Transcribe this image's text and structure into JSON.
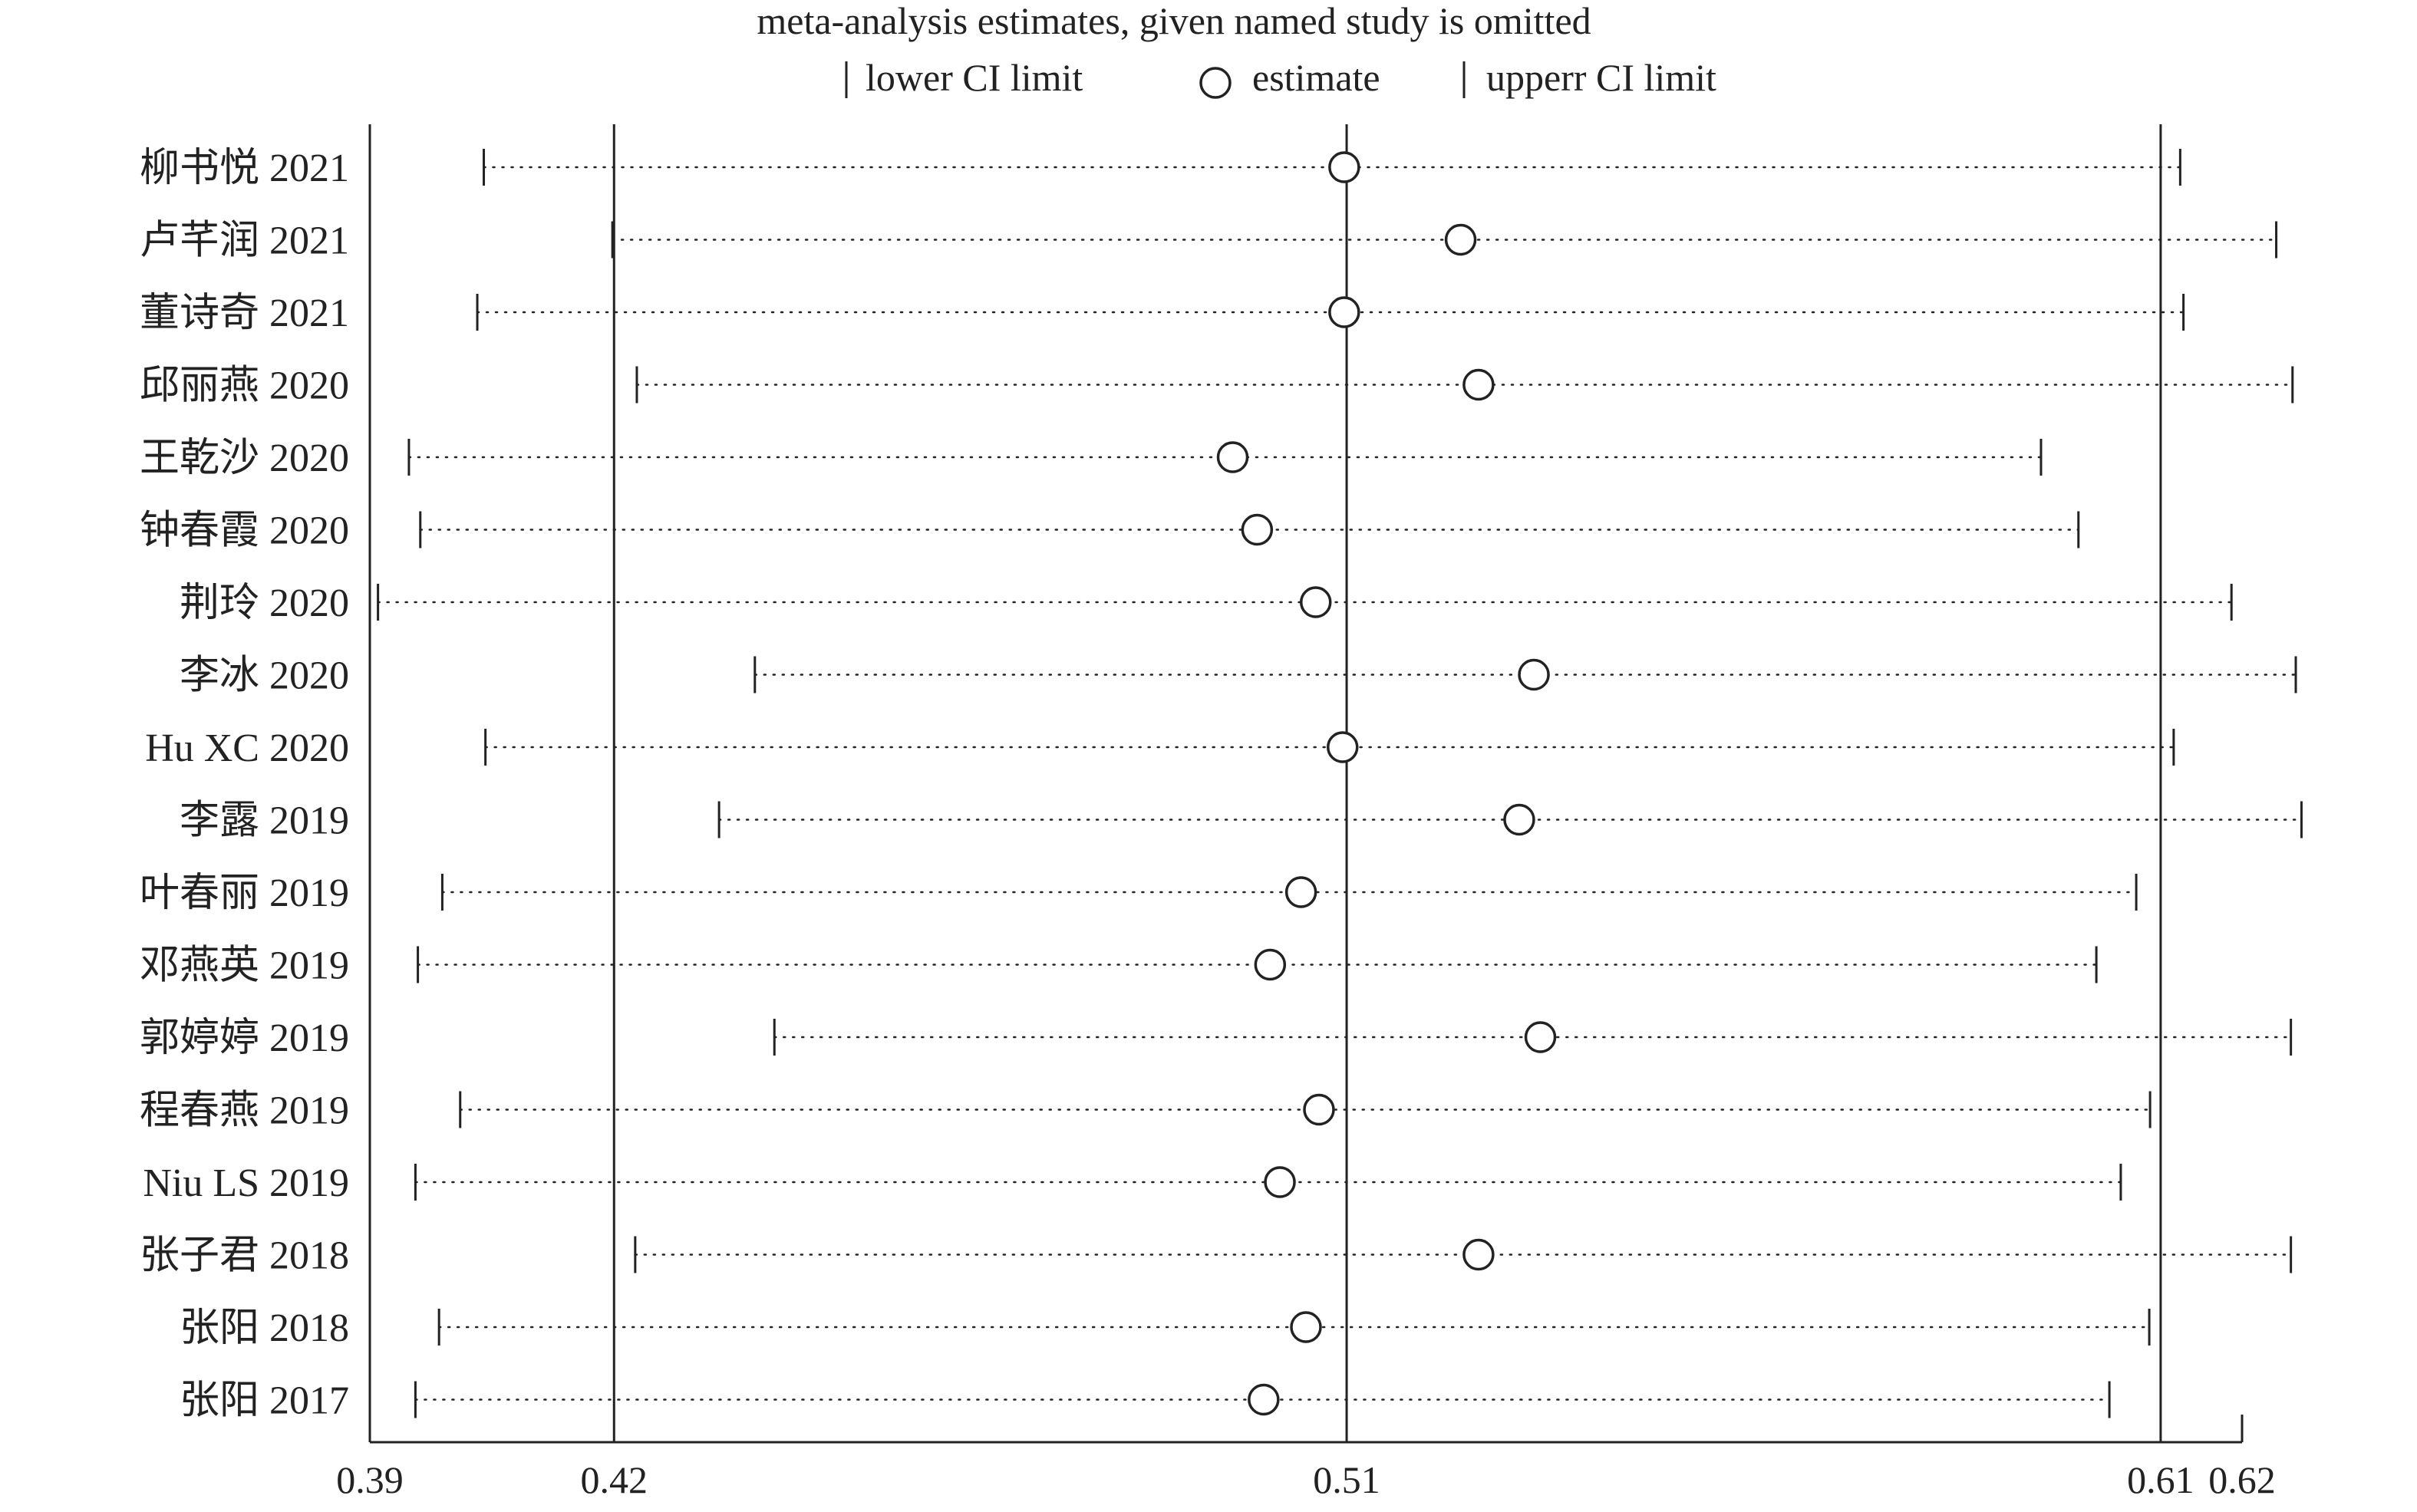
{
  "chart_data": {
    "type": "scatter",
    "title": "meta-analysis estimates, given named study is omitted",
    "legend": {
      "placement": "top",
      "entries": [
        {
          "symbol": "|",
          "label": "lower CI limit"
        },
        {
          "symbol": "○",
          "label": "estimate"
        },
        {
          "symbol": "|",
          "label": "upperr CI limit"
        }
      ]
    },
    "xlim": [
      0.39,
      0.62
    ],
    "xticks": [
      {
        "value": 0.39,
        "label": "0.39"
      },
      {
        "value": 0.42,
        "label": "0.42"
      },
      {
        "value": 0.51,
        "label": "0.51"
      },
      {
        "value": 0.61,
        "label": "0.61"
      },
      {
        "value": 0.62,
        "label": "0.62"
      }
    ],
    "reference_lines": [
      0.42,
      0.51,
      0.61
    ],
    "studies": [
      {
        "label": "柳书悦 2021",
        "lower": 0.404,
        "estimate": 0.5097,
        "upper": 0.6124
      },
      {
        "label": "卢芊润 2021",
        "lower": 0.4198,
        "estimate": 0.524,
        "upper": 0.6242
      },
      {
        "label": "董诗奇 2021",
        "lower": 0.4032,
        "estimate": 0.5097,
        "upper": 0.6128
      },
      {
        "label": "邱丽燕 2020",
        "lower": 0.4228,
        "estimate": 0.5262,
        "upper": 0.6262
      },
      {
        "label": "王乾沙 2020",
        "lower": 0.3948,
        "estimate": 0.496,
        "upper": 0.5953
      },
      {
        "label": "钟春霞 2020",
        "lower": 0.3962,
        "estimate": 0.499,
        "upper": 0.5999
      },
      {
        "label": "荆玲 2020",
        "lower": 0.391,
        "estimate": 0.5062,
        "upper": 0.6187
      },
      {
        "label": "李冰 2020",
        "lower": 0.4373,
        "estimate": 0.533,
        "upper": 0.6266
      },
      {
        "label": "Hu XC 2020",
        "lower": 0.4042,
        "estimate": 0.5095,
        "upper": 0.6116
      },
      {
        "label": "李露 2019",
        "lower": 0.4329,
        "estimate": 0.5312,
        "upper": 0.6273
      },
      {
        "label": "叶春丽 2019",
        "lower": 0.3989,
        "estimate": 0.5044,
        "upper": 0.607
      },
      {
        "label": "邓燕英 2019",
        "lower": 0.3959,
        "estimate": 0.5006,
        "upper": 0.6021
      },
      {
        "label": "郭婷婷 2019",
        "lower": 0.4397,
        "estimate": 0.5338,
        "upper": 0.626
      },
      {
        "label": "程春燕 2019",
        "lower": 0.4011,
        "estimate": 0.5066,
        "upper": 0.6087
      },
      {
        "label": "Niu LS 2019",
        "lower": 0.3956,
        "estimate": 0.5018,
        "upper": 0.6051
      },
      {
        "label": "张子君 2018",
        "lower": 0.4226,
        "estimate": 0.5262,
        "upper": 0.626
      },
      {
        "label": "张阳 2018",
        "lower": 0.3985,
        "estimate": 0.505,
        "upper": 0.6086
      },
      {
        "label": "张阳 2017",
        "lower": 0.3956,
        "estimate": 0.4998,
        "upper": 0.6037
      }
    ]
  }
}
